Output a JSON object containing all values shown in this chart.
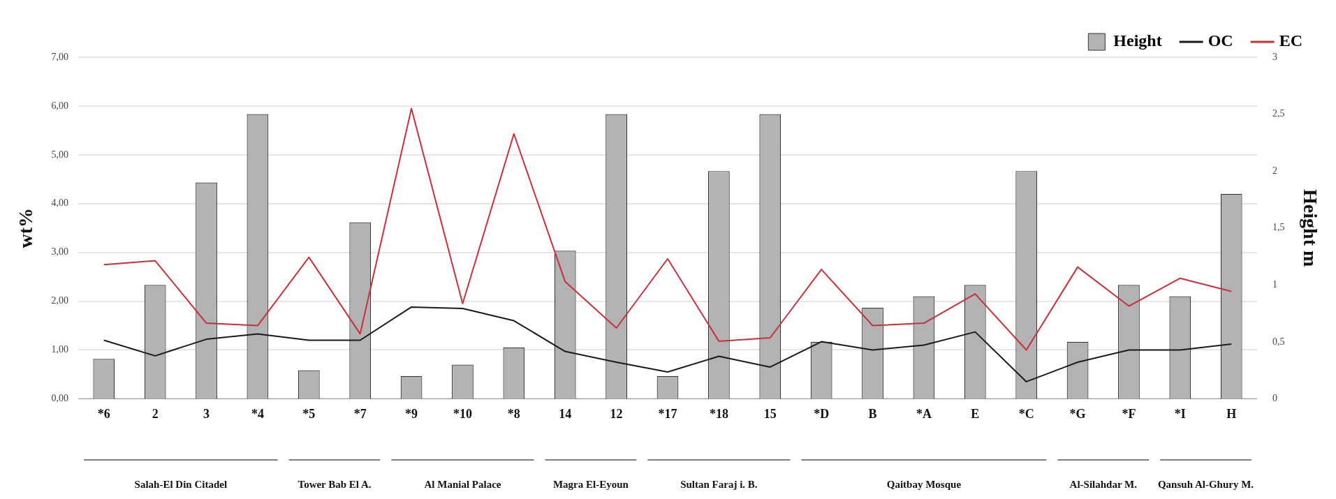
{
  "chart_data": {
    "type": "bar",
    "ylabel": "wt%",
    "y2label": "Height m",
    "categories": [
      "*6",
      "2",
      "3",
      "*4",
      "*5",
      "*7",
      "*9",
      "*10",
      "*8",
      "14",
      "12",
      "*17",
      "*18",
      "15",
      "*D",
      "B",
      "*A",
      "E",
      "*C",
      "*G",
      "*F",
      "*I",
      "H"
    ],
    "series": [
      {
        "name": "Height",
        "axis": "y2",
        "color": "#b3b3b3",
        "values": [
          0.35,
          1.0,
          1.9,
          2.5,
          0.25,
          1.55,
          0.2,
          0.3,
          0.45,
          1.3,
          2.5,
          0.2,
          2.0,
          2.5,
          0.5,
          0.8,
          0.9,
          1.0,
          2.0,
          0.5,
          1.0,
          0.9,
          1.8
        ]
      },
      {
        "name": "OC",
        "type": "line",
        "color": "#1a1a1a",
        "values": [
          1.2,
          0.88,
          1.22,
          1.33,
          1.2,
          1.2,
          1.88,
          1.85,
          1.6,
          0.97,
          0.75,
          0.55,
          0.87,
          0.65,
          1.17,
          1.0,
          1.1,
          1.37,
          0.35,
          0.75,
          1.0,
          1.0,
          1.12
        ]
      },
      {
        "name": "EC",
        "type": "line",
        "color": "#c8313a",
        "values": [
          2.75,
          2.83,
          1.55,
          1.5,
          2.9,
          1.33,
          5.95,
          1.95,
          5.43,
          2.4,
          1.45,
          2.87,
          1.18,
          1.25,
          2.65,
          1.5,
          1.55,
          2.15,
          1.0,
          2.7,
          1.9,
          2.47,
          2.2
        ]
      }
    ],
    "ylim": [
      0,
      7
    ],
    "yticks": [
      {
        "value": 0,
        "label": "0,00"
      },
      {
        "value": 1,
        "label": "1,00"
      },
      {
        "value": 2,
        "label": "2,00"
      },
      {
        "value": 3,
        "label": "3,00"
      },
      {
        "value": 4,
        "label": "4,00"
      },
      {
        "value": 5,
        "label": "5,00"
      },
      {
        "value": 6,
        "label": "6,00"
      },
      {
        "value": 7,
        "label": "7,00"
      }
    ],
    "y2lim": [
      0,
      3
    ],
    "y2ticks": [
      0,
      {
        "value": 0.5,
        "label": "0,5"
      },
      1,
      {
        "value": 1.5,
        "label": "1,5"
      },
      2,
      {
        "value": 2.5,
        "label": "2,5"
      },
      3
    ],
    "grid": "y",
    "legend": "top right",
    "marker": "none",
    "line_style": "solid",
    "annotations": [
      "Salah-El Din Citadel",
      "Tower Bab El A.",
      "Al Manial Palace",
      "Magra El-Eyoun",
      "Sultan Faraj i. B.",
      "Qaitbay Mosque",
      "Al-Silahdar M.",
      "Qansuh Al-Ghury M."
    ]
  }
}
